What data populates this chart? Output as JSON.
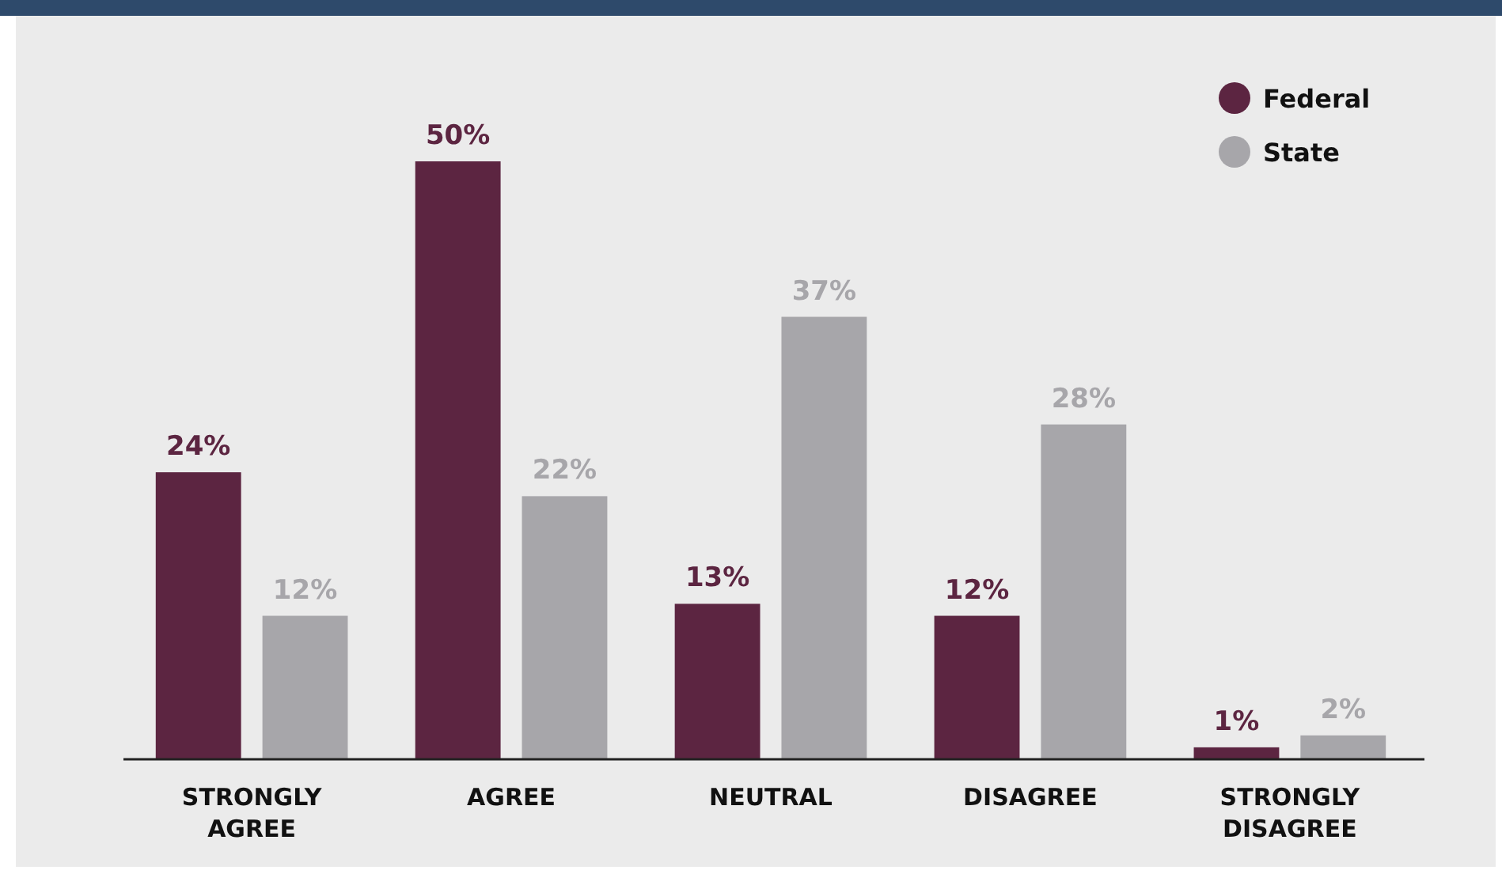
{
  "chart_data": {
    "type": "bar",
    "categories": [
      "STRONGLY AGREE",
      "AGREE",
      "NEUTRAL",
      "DISAGREE",
      "STRONGLY DISAGREE"
    ],
    "series": [
      {
        "name": "Federal",
        "color": "#5c2541",
        "values": [
          24,
          50,
          13,
          12,
          1
        ],
        "value_labels": [
          "24%",
          "50%",
          "13%",
          "12%",
          "1%"
        ]
      },
      {
        "name": "State",
        "color": "#a7a6aa",
        "values": [
          12,
          22,
          37,
          28,
          2
        ],
        "value_labels": [
          "12%",
          "22%",
          "37%",
          "28%",
          "2%"
        ]
      }
    ],
    "legend": "top right"
  }
}
